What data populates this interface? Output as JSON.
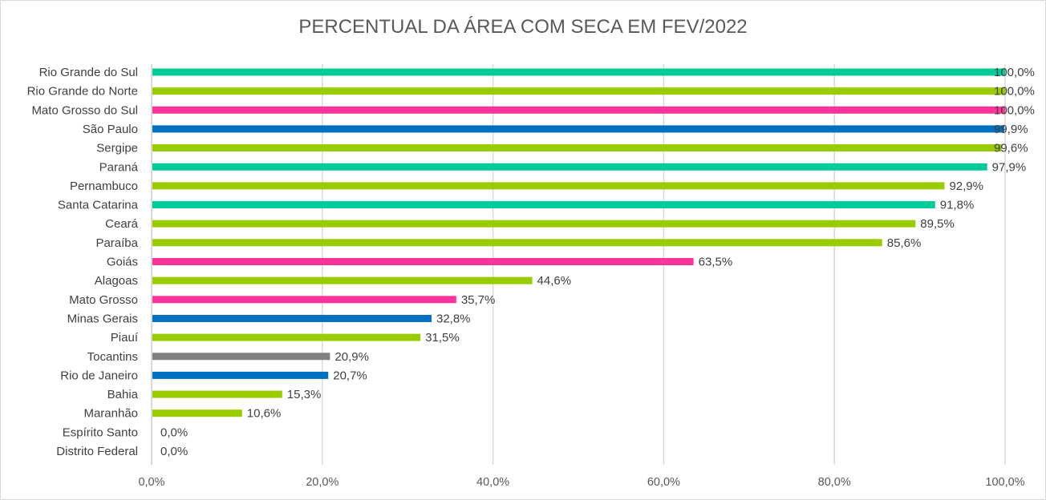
{
  "chart_data": {
    "type": "bar",
    "orientation": "horizontal",
    "title": "PERCENTUAL DA ÁREA COM SECA EM FEV/2022",
    "xlabel": "",
    "ylabel": "",
    "xlim": [
      0,
      100
    ],
    "x_ticks": [
      "0,0%",
      "20,0%",
      "40,0%",
      "60,0%",
      "80,0%",
      "100,0%"
    ],
    "grid": "vertical",
    "legend": "none",
    "categories": [
      "Rio Grande do Sul",
      "Rio Grande do Norte",
      "Mato Grosso do Sul",
      "São Paulo",
      "Sergipe",
      "Paraná",
      "Pernambuco",
      "Santa Catarina",
      "Ceará",
      "Paraíba",
      "Goiás",
      "Alagoas",
      "Mato Grosso",
      "Minas Gerais",
      "Piauí",
      "Tocantins",
      "Rio de Janeiro",
      "Bahia",
      "Maranhão",
      "Espírito Santo",
      "Distrito Federal"
    ],
    "values": [
      100.0,
      100.0,
      100.0,
      99.9,
      99.6,
      97.9,
      92.9,
      91.8,
      89.5,
      85.6,
      63.5,
      44.6,
      35.7,
      32.8,
      31.5,
      20.9,
      20.7,
      15.3,
      10.6,
      0.0,
      0.0
    ],
    "data_labels": [
      "100,0%",
      "100,0%",
      "100,0%",
      "99,9%",
      "99,6%",
      "97,9%",
      "92,9%",
      "91,8%",
      "89,5%",
      "85,6%",
      "63,5%",
      "44,6%",
      "35,7%",
      "32,8%",
      "31,5%",
      "20,9%",
      "20,7%",
      "15,3%",
      "10,6%",
      "0,0%",
      "0,0%"
    ],
    "bar_colors": [
      "#00CC99",
      "#99CC00",
      "#FF3399",
      "#0070C0",
      "#99CC00",
      "#00CC99",
      "#99CC00",
      "#00CC99",
      "#99CC00",
      "#99CC00",
      "#FF3399",
      "#99CC00",
      "#FF3399",
      "#0070C0",
      "#99CC00",
      "#808080",
      "#0070C0",
      "#99CC00",
      "#99CC00",
      "#99CC00",
      "#99CC00"
    ]
  }
}
